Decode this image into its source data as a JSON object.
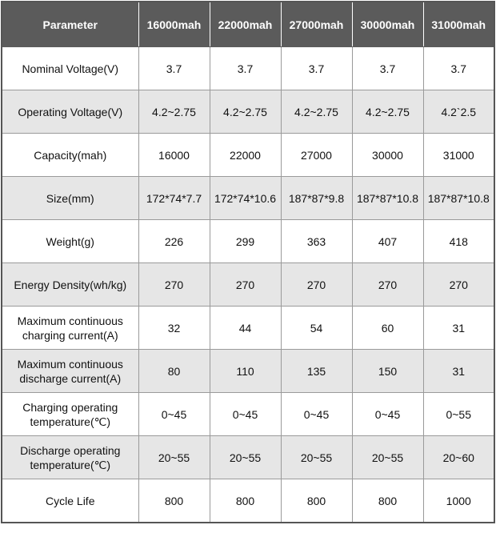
{
  "table": {
    "header": [
      "Parameter",
      "16000mah",
      "22000mah",
      "27000mah",
      "30000mah",
      "31000mah"
    ],
    "rows": [
      [
        "Nominal Voltage(V)",
        "3.7",
        "3.7",
        "3.7",
        "3.7",
        "3.7"
      ],
      [
        "Operating Voltage(V)",
        "4.2~2.75",
        "4.2~2.75",
        "4.2~2.75",
        "4.2~2.75",
        "4.2`2.5"
      ],
      [
        "Capacity(mah)",
        "16000",
        "22000",
        "27000",
        "30000",
        "31000"
      ],
      [
        "Size(mm)",
        "172*74*7.7",
        "172*74*10.6",
        "187*87*9.8",
        "187*87*10.8",
        "187*87*10.8"
      ],
      [
        "Weight(g)",
        "226",
        "299",
        "363",
        "407",
        "418"
      ],
      [
        "Energy Density(wh/kg)",
        "270",
        "270",
        "270",
        "270",
        "270"
      ],
      [
        "Maximum continuous charging current(A)",
        "32",
        "44",
        "54",
        "60",
        "31"
      ],
      [
        "Maximum continuous discharge current(A)",
        "80",
        "110",
        "135",
        "150",
        "31"
      ],
      [
        "Charging operating temperature(℃)",
        "0~45",
        "0~45",
        "0~45",
        "0~45",
        "0~55"
      ],
      [
        "Discharge operating temperature(℃)",
        "20~55",
        "20~55",
        "20~55",
        "20~55",
        "20~60"
      ],
      [
        "Cycle Life",
        "800",
        "800",
        "800",
        "800",
        "1000"
      ]
    ]
  }
}
